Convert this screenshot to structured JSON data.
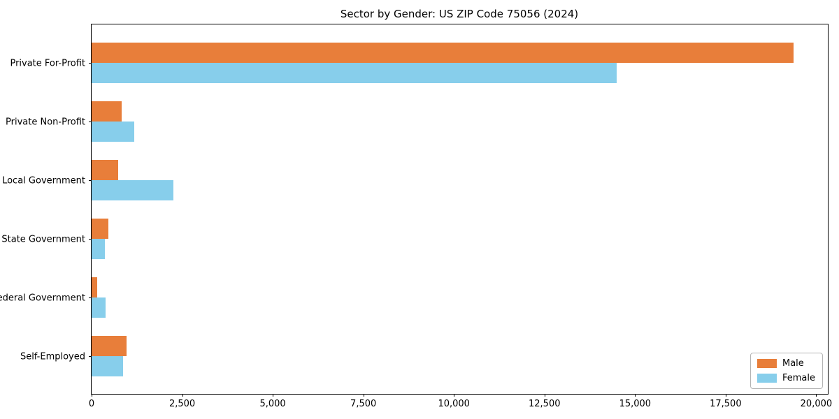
{
  "chart_data": {
    "type": "bar",
    "orientation": "horizontal",
    "title": "Sector by Gender: US ZIP Code 75056 (2024)",
    "categories": [
      "Private For-Profit",
      "Private Non-Profit",
      "Local Government",
      "State Government",
      "Federal Government",
      "Self-Employed"
    ],
    "series": [
      {
        "name": "Male",
        "color": "#e87e3a",
        "values": [
          19370,
          830,
          740,
          465,
          150,
          970
        ]
      },
      {
        "name": "Female",
        "color": "#87ceeb",
        "values": [
          14500,
          1170,
          2250,
          370,
          380,
          870
        ]
      }
    ],
    "xlabel": "",
    "ylabel": "",
    "xlim": [
      0,
      20320
    ],
    "x_ticks": [
      0,
      2500,
      5000,
      7500,
      10000,
      12500,
      15000,
      17500,
      20000
    ],
    "x_tick_labels": [
      "0",
      "2,500",
      "5,000",
      "7,500",
      "10,000",
      "12,500",
      "15,000",
      "17,500",
      "20,000"
    ],
    "grid": false,
    "legend": {
      "position": "lower right"
    }
  }
}
